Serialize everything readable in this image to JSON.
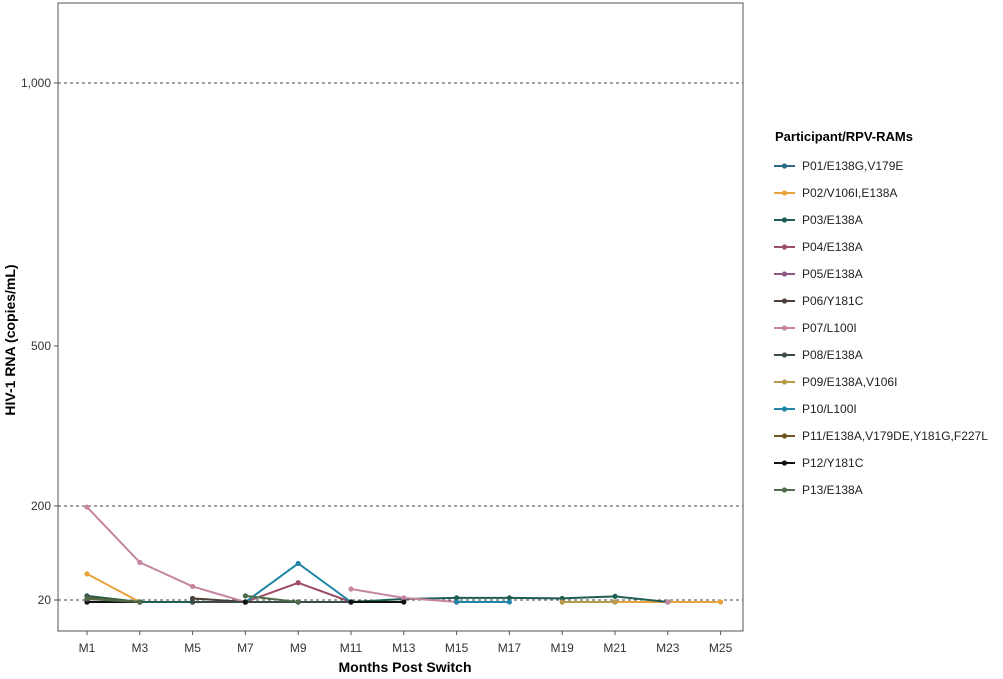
{
  "chart_data": {
    "type": "line",
    "title": "",
    "xlabel": "Months Post Switch",
    "ylabel": "HIV-1 RNA (copies/mL)",
    "categories": [
      "M1",
      "M3",
      "M5",
      "M7",
      "M9",
      "M11",
      "M13",
      "M15",
      "M17",
      "M19",
      "M21",
      "M23",
      "M25"
    ],
    "y_scale": "transformed (non-linear)",
    "y_ticks": [
      {
        "value": 20,
        "label": "20"
      },
      {
        "value": 200,
        "label": "200"
      },
      {
        "value": 500,
        "label": "500"
      },
      {
        "value": 1000,
        "label": "1,000"
      }
    ],
    "reference_lines": [
      20,
      200,
      1000
    ],
    "legend_title": "Participant/RPV-RAMs",
    "legend_position": "right",
    "series": [
      {
        "name": "P01/E138G,V179E",
        "color": "#2a6b8a",
        "values": [
          19,
          19,
          19,
          19,
          19,
          19,
          null,
          null,
          null,
          null,
          null,
          null,
          null
        ]
      },
      {
        "name": "P02/V106I,E138A",
        "color": "#e8a33d",
        "values": [
          70,
          19,
          null,
          null,
          null,
          null,
          null,
          null,
          null,
          19,
          19,
          19,
          19
        ]
      },
      {
        "name": "P03/E138A",
        "color": "#1f5e53",
        "values": [
          28,
          19,
          19,
          19,
          19,
          19,
          22,
          24,
          24,
          23,
          27,
          19,
          null
        ]
      },
      {
        "name": "P04/E138A",
        "color": "#9c4e63",
        "values": [
          null,
          null,
          null,
          19,
          53,
          19,
          null,
          null,
          null,
          null,
          null,
          null,
          null
        ]
      },
      {
        "name": "P05/E138A",
        "color": "#8a5a84",
        "values": [
          null,
          null,
          null,
          null,
          19,
          19,
          null,
          null,
          null,
          null,
          null,
          null,
          null
        ]
      },
      {
        "name": "P06/Y181C",
        "color": "#4b3f38",
        "values": [
          null,
          null,
          23,
          19,
          null,
          null,
          null,
          null,
          null,
          null,
          null,
          null,
          null
        ]
      },
      {
        "name": "P07/L100I",
        "color": "#c585a1",
        "values": [
          198,
          92,
          46,
          19,
          null,
          41,
          24,
          19,
          null,
          null,
          null,
          19,
          null
        ]
      },
      {
        "name": "P08/E138A",
        "color": "#3c4a4a",
        "values": [
          null,
          null,
          19,
          19,
          19,
          19,
          null,
          null,
          null,
          null,
          null,
          null,
          null
        ]
      },
      {
        "name": "P09/E138A,V106I",
        "color": "#b59a48",
        "values": [
          null,
          null,
          null,
          null,
          null,
          null,
          null,
          19,
          null,
          19,
          19,
          null,
          null
        ]
      },
      {
        "name": "P10/L100I",
        "color": "#1f86a7",
        "values": [
          null,
          null,
          null,
          19,
          90,
          19,
          null,
          19,
          19,
          null,
          null,
          null,
          null
        ]
      },
      {
        "name": "P11/E138A,V179DE,Y181G,F227L",
        "color": "#6b5420",
        "values": [
          24,
          19,
          null,
          null,
          null,
          null,
          null,
          null,
          null,
          null,
          null,
          null,
          null
        ]
      },
      {
        "name": "P12/Y181C",
        "color": "#111111",
        "values": [
          19,
          19,
          null,
          19,
          null,
          19,
          19,
          null,
          null,
          null,
          null,
          null,
          null
        ]
      },
      {
        "name": "P13/E138A",
        "color": "#4e6b4a",
        "values": [
          22,
          19,
          null,
          28,
          19,
          null,
          null,
          null,
          null,
          null,
          null,
          null,
          null
        ]
      }
    ]
  }
}
